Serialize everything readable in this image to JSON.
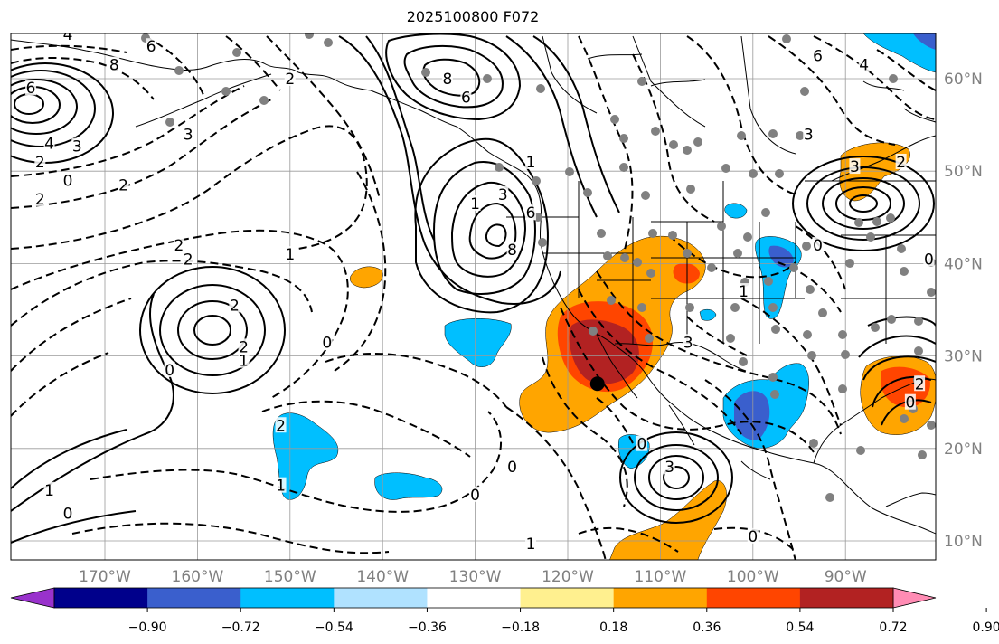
{
  "title": "2025100800 F072",
  "map": {
    "lon_ticks": [
      {
        "lon": -170,
        "label": "170°W"
      },
      {
        "lon": -160,
        "label": "160°W"
      },
      {
        "lon": -150,
        "label": "150°W"
      },
      {
        "lon": -140,
        "label": "140°W"
      },
      {
        "lon": -130,
        "label": "130°W"
      },
      {
        "lon": -120,
        "label": "120°W"
      },
      {
        "lon": -110,
        "label": "110°W"
      },
      {
        "lon": -100,
        "label": "100°W"
      },
      {
        "lon": -90,
        "label": "90°W"
      }
    ],
    "lat_ticks": [
      {
        "lat": 60,
        "label": "60°N"
      },
      {
        "lat": 50,
        "label": "50°N"
      },
      {
        "lat": 40,
        "label": "40°N"
      },
      {
        "lat": 30,
        "label": "30°N"
      },
      {
        "lat": 20,
        "label": "20°N"
      },
      {
        "lat": 10,
        "label": "10°N"
      }
    ],
    "contour_labels": [
      {
        "text": "4",
        "lon": -174,
        "lat": 64.8
      },
      {
        "text": "6",
        "lon": -165,
        "lat": 63.5
      },
      {
        "text": "8",
        "lon": -169,
        "lat": 61.5
      },
      {
        "text": "6",
        "lon": -178,
        "lat": 59
      },
      {
        "text": "4",
        "lon": -176,
        "lat": 53
      },
      {
        "text": "3",
        "lon": -173,
        "lat": 52.7
      },
      {
        "text": "2",
        "lon": -177,
        "lat": 51
      },
      {
        "text": "0",
        "lon": -174,
        "lat": 49
      },
      {
        "text": "2",
        "lon": -177,
        "lat": 47
      },
      {
        "text": "2",
        "lon": -168,
        "lat": 48.5
      },
      {
        "text": "3",
        "lon": -161,
        "lat": 54
      },
      {
        "text": "2",
        "lon": -150,
        "lat": 60
      },
      {
        "text": "2",
        "lon": -161,
        "lat": 40.5
      },
      {
        "text": "2",
        "lon": -162,
        "lat": 42
      },
      {
        "text": "1",
        "lon": -150,
        "lat": 41
      },
      {
        "text": "2",
        "lon": -156,
        "lat": 35.5
      },
      {
        "text": "2",
        "lon": -155,
        "lat": 31
      },
      {
        "text": "1",
        "lon": -155,
        "lat": 29.5
      },
      {
        "text": "0",
        "lon": -163,
        "lat": 28.5
      },
      {
        "text": "0",
        "lon": -146,
        "lat": 31.5
      },
      {
        "text": "2",
        "lon": -151,
        "lat": 22.5
      },
      {
        "text": "1",
        "lon": -151,
        "lat": 16
      },
      {
        "text": "1",
        "lon": -176,
        "lat": 15.5
      },
      {
        "text": "0",
        "lon": -174,
        "lat": 13
      },
      {
        "text": "8",
        "lon": -126,
        "lat": 41.5
      },
      {
        "text": "6",
        "lon": -124,
        "lat": 45.5
      },
      {
        "text": "3",
        "lon": -127,
        "lat": 47.5
      },
      {
        "text": "1",
        "lon": -130,
        "lat": 46.5
      },
      {
        "text": "1",
        "lon": -124,
        "lat": 51
      },
      {
        "text": "8",
        "lon": -133,
        "lat": 60
      },
      {
        "text": "6",
        "lon": -131,
        "lat": 58
      },
      {
        "text": "0",
        "lon": -126,
        "lat": 18
      },
      {
        "text": "0",
        "lon": -130,
        "lat": 15
      },
      {
        "text": "3",
        "lon": -109,
        "lat": 18
      },
      {
        "text": "0",
        "lon": -112,
        "lat": 20.5
      },
      {
        "text": "1",
        "lon": -124,
        "lat": 9.7
      },
      {
        "text": "0",
        "lon": -100,
        "lat": 10.5
      },
      {
        "text": "3",
        "lon": -94,
        "lat": 54
      },
      {
        "text": "3",
        "lon": -89,
        "lat": 50.5
      },
      {
        "text": "0",
        "lon": -93,
        "lat": 42
      },
      {
        "text": "6",
        "lon": -93,
        "lat": 62.5
      },
      {
        "text": "4",
        "lon": -88,
        "lat": 61.5
      },
      {
        "text": "2",
        "lon": -84,
        "lat": 51
      },
      {
        "text": "0",
        "lon": -81,
        "lat": 40.5
      },
      {
        "text": "2",
        "lon": -82,
        "lat": 27
      },
      {
        "text": "0",
        "lon": -83,
        "lat": 25
      },
      {
        "text": "1",
        "lon": -101,
        "lat": 37
      },
      {
        "text": "3",
        "lon": -107,
        "lat": 31.5
      }
    ],
    "station_marker": {
      "lon": -116.8,
      "lat": 27
    }
  },
  "colorbar": {
    "colors": [
      "#9932cc",
      "#00008b",
      "#3a5fcd",
      "#00bfff",
      "#b0e2ff",
      "#ffffff",
      "#fff08f",
      "#ffa500",
      "#ff4500",
      "#b22222",
      "#ff8cb4"
    ],
    "ticks": [
      {
        "value": -0.9,
        "label": "−0.90"
      },
      {
        "value": -0.72,
        "label": "−0.72"
      },
      {
        "value": -0.54,
        "label": "−0.54"
      },
      {
        "value": -0.36,
        "label": "−0.36"
      },
      {
        "value": -0.18,
        "label": "−0.18"
      },
      {
        "value": 0.18,
        "label": "0.18"
      },
      {
        "value": 0.36,
        "label": "0.36"
      },
      {
        "value": 0.54,
        "label": "0.54"
      },
      {
        "value": 0.72,
        "label": "0.72"
      },
      {
        "value": 0.9,
        "label": "0.90"
      }
    ]
  }
}
